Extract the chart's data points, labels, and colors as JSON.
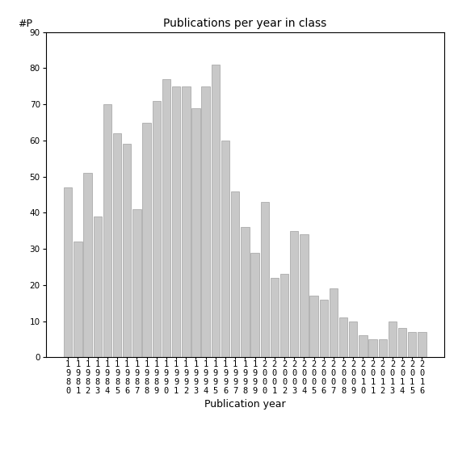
{
  "title": "Publications per year in class",
  "xlabel": "Publication year",
  "ylabel": "#P",
  "years": [
    1980,
    1981,
    1982,
    1983,
    1984,
    1985,
    1986,
    1987,
    1988,
    1989,
    1990,
    1991,
    1992,
    1993,
    1994,
    1995,
    1996,
    1997,
    1998,
    1999,
    2000,
    2001,
    2002,
    2003,
    2004,
    2005,
    2006,
    2007,
    2008,
    2009,
    2010,
    2011,
    2012,
    2013,
    2014,
    2015,
    2016
  ],
  "values": [
    47,
    32,
    51,
    39,
    70,
    62,
    59,
    41,
    65,
    71,
    77,
    75,
    75,
    69,
    75,
    81,
    60,
    46,
    36,
    29,
    43,
    22,
    23,
    35,
    34,
    17,
    16,
    19,
    11,
    10,
    6,
    5,
    5,
    10,
    8,
    7,
    7
  ],
  "bar_color": "#c8c8c8",
  "bar_edgecolor": "#a0a0a0",
  "ylim": [
    0,
    90
  ],
  "yticks": [
    0,
    10,
    20,
    30,
    40,
    50,
    60,
    70,
    80,
    90
  ],
  "background_color": "#ffffff",
  "title_fontsize": 10,
  "label_fontsize": 9,
  "tick_fontsize": 7.5
}
